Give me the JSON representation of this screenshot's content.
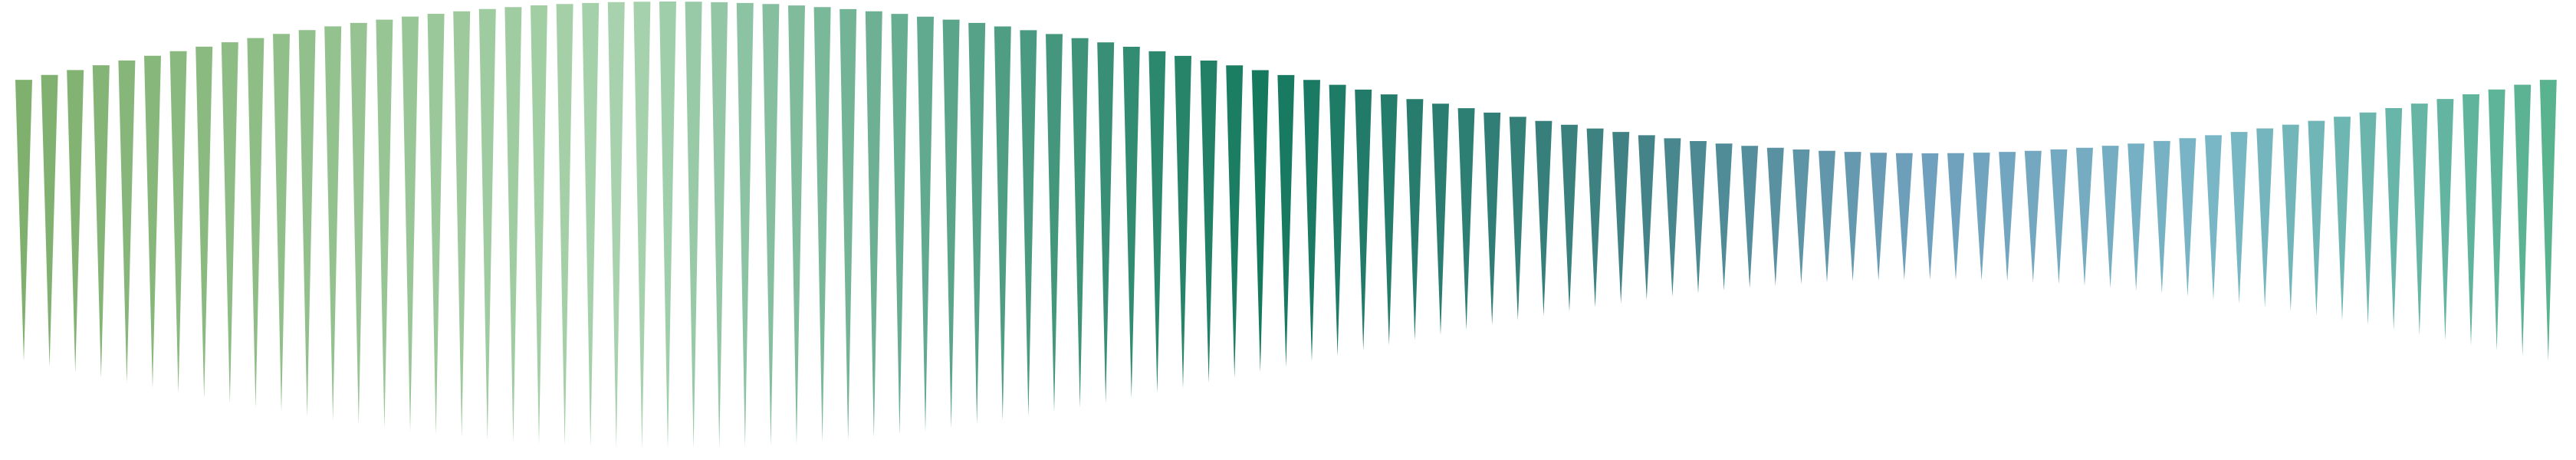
{
  "graphic": {
    "kind": "decorative-spike-wave",
    "spike_count": 99,
    "gradient_stops": [
      {
        "at": 0.0,
        "color": "#7fb06e"
      },
      {
        "at": 0.24,
        "color": "#a8d3ae"
      },
      {
        "at": 0.36,
        "color": "#5fa88e"
      },
      {
        "at": 0.49,
        "color": "#15795e"
      },
      {
        "at": 0.63,
        "color": "#3f8182"
      },
      {
        "at": 0.75,
        "color": "#6f9fbd"
      },
      {
        "at": 0.87,
        "color": "#79b7c6"
      },
      {
        "at": 1.0,
        "color": "#59b38f"
      }
    ]
  }
}
